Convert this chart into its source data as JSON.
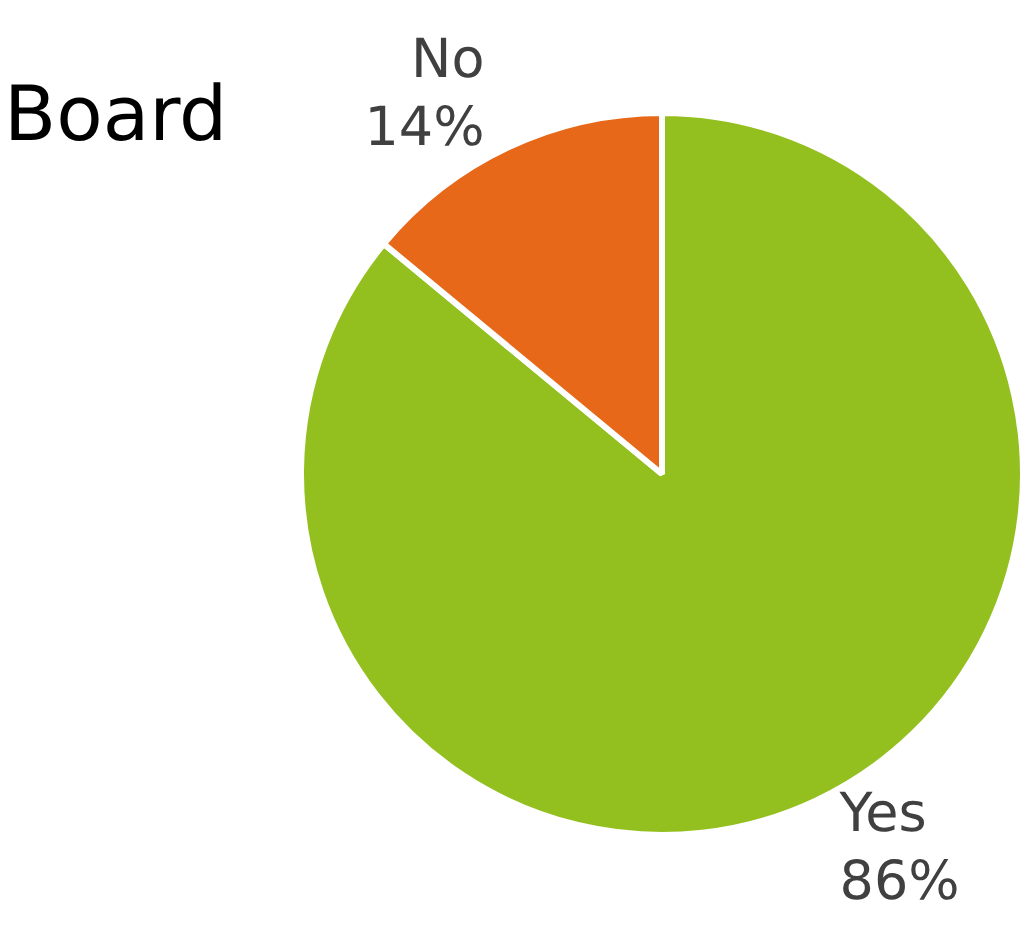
{
  "chart_data": {
    "type": "pie",
    "title": "Board",
    "categories": [
      "Yes",
      "No"
    ],
    "values": [
      86,
      14
    ],
    "colors": [
      "#93c01f",
      "#e8681a"
    ],
    "value_labels": [
      "86%",
      "14%"
    ],
    "legend": false
  }
}
